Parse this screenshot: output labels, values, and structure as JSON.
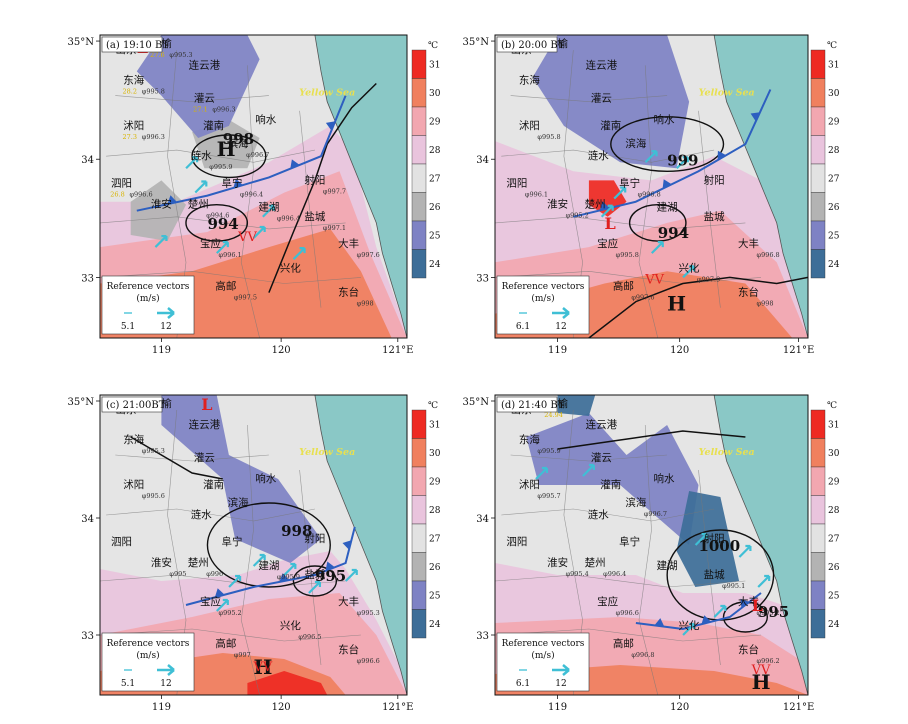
{
  "figure": {
    "map_extent": {
      "lon": [
        118.5,
        121.0
      ],
      "lat": [
        32.75,
        35.0
      ]
    },
    "colorbar": {
      "unit": "℃",
      "ticks": [
        "31",
        "30",
        "29",
        "28",
        "27",
        "26",
        "25",
        "24"
      ],
      "colors": [
        "#ee2a22",
        "#f0805e",
        "#f2a7b0",
        "#e9c4dd",
        "#e2e2e2",
        "#b3b3b3",
        "#7e82c4",
        "#3d6e98"
      ]
    },
    "colors": {
      "sea": "#8ac8c6",
      "land_base": "#e5e5e5",
      "front": "#2d5fc0",
      "trough": "#111111",
      "high_low": "#e02020"
    },
    "lon_ticks": [
      "119",
      "120",
      "121°E"
    ],
    "lat_ticks": [
      "35°N",
      "34",
      "33"
    ],
    "sea_label": "Yellow Sea",
    "legend": {
      "title": "Reference  vectors",
      "unit": "(m/s)"
    }
  },
  "panels": [
    {
      "id": "a",
      "title": "(a) 19:10 BT",
      "pressure_labels": [
        "998",
        "994"
      ],
      "legend_values": [
        "5.1",
        "12"
      ],
      "cities": [
        {
          "name": "赣榆",
          "temp": "27.6",
          "pres": "995.3"
        },
        {
          "name": "连云港",
          "temp": "",
          "pres": ""
        },
        {
          "name": "东海",
          "temp": "28.2",
          "pres": "995.8"
        },
        {
          "name": "灌云",
          "temp": "27.1",
          "pres": "996.3"
        },
        {
          "name": "沭阳",
          "temp": "27.3",
          "pres": "996.3"
        },
        {
          "name": "灌南",
          "temp": "",
          "pres": ""
        },
        {
          "name": "响水",
          "temp": "",
          "pres": ""
        },
        {
          "name": "涟水",
          "temp": "",
          "pres": "995.9"
        },
        {
          "name": "滨海",
          "temp": "",
          "pres": "996.7"
        },
        {
          "name": "阜宁",
          "temp": "",
          "pres": "996.4"
        },
        {
          "name": "泗阳",
          "temp": "26.8",
          "pres": "996.6"
        },
        {
          "name": "射阳",
          "temp": "",
          "pres": "997.7"
        },
        {
          "name": "淮安",
          "temp": "",
          "pres": ""
        },
        {
          "name": "楚州",
          "temp": "",
          "pres": "994.6"
        },
        {
          "name": "建湖",
          "temp": "",
          "pres": "996.4"
        },
        {
          "name": "盐城",
          "temp": "",
          "pres": "997.1"
        },
        {
          "name": "宝应",
          "temp": "",
          "pres": "996.1"
        },
        {
          "name": "大丰",
          "temp": "",
          "pres": "997.6"
        },
        {
          "name": "兴化",
          "temp": "",
          "pres": ""
        },
        {
          "name": "高邮",
          "temp": "",
          "pres": "997.5"
        },
        {
          "name": "东台",
          "temp": "",
          "pres": "998"
        }
      ]
    },
    {
      "id": "b",
      "title": "(b) 20:00 BT",
      "pressure_labels": [
        "999",
        "994"
      ],
      "legend_values": [
        "6.1",
        "12"
      ],
      "cities": [
        {
          "name": "赣榆",
          "temp": "",
          "pres": ""
        },
        {
          "name": "连云港",
          "temp": "",
          "pres": ""
        },
        {
          "name": "东海",
          "temp": "",
          "pres": ""
        },
        {
          "name": "灌云",
          "temp": "",
          "pres": ""
        },
        {
          "name": "沭阳",
          "temp": "",
          "pres": "995.8"
        },
        {
          "name": "灌南",
          "temp": "",
          "pres": ""
        },
        {
          "name": "响水",
          "temp": "",
          "pres": ""
        },
        {
          "name": "涟水",
          "temp": "",
          "pres": ""
        },
        {
          "name": "滨海",
          "temp": "",
          "pres": ""
        },
        {
          "name": "阜宁",
          "temp": "",
          "pres": "996.8"
        },
        {
          "name": "泗阳",
          "temp": "",
          "pres": "996.1"
        },
        {
          "name": "射阳",
          "temp": "",
          "pres": ""
        },
        {
          "name": "淮安",
          "temp": "",
          "pres": "995.2"
        },
        {
          "name": "楚州",
          "temp": "",
          "pres": ""
        },
        {
          "name": "建湖",
          "temp": "",
          "pres": ""
        },
        {
          "name": "盐城",
          "temp": "",
          "pres": ""
        },
        {
          "name": "宝应",
          "temp": "",
          "pres": "995.8"
        },
        {
          "name": "大丰",
          "temp": "",
          "pres": "996.8"
        },
        {
          "name": "兴化",
          "temp": "",
          "pres": "997.9"
        },
        {
          "name": "高邮",
          "temp": "",
          "pres": "997.6"
        },
        {
          "name": "东台",
          "temp": "",
          "pres": "998"
        }
      ]
    },
    {
      "id": "c",
      "title": "(c) 21:00BT",
      "pressure_labels": [
        "998",
        "995"
      ],
      "legend_values": [
        "5.1",
        "12"
      ],
      "cities": [
        {
          "name": "赣榆",
          "temp": "",
          "pres": ""
        },
        {
          "name": "连云港",
          "temp": "",
          "pres": ""
        },
        {
          "name": "东海",
          "temp": "",
          "pres": "995.3"
        },
        {
          "name": "灌云",
          "temp": "",
          "pres": ""
        },
        {
          "name": "沭阳",
          "temp": "",
          "pres": "995.6"
        },
        {
          "name": "灌南",
          "temp": "",
          "pres": ""
        },
        {
          "name": "响水",
          "temp": "",
          "pres": ""
        },
        {
          "name": "涟水",
          "temp": "",
          "pres": ""
        },
        {
          "name": "滨海",
          "temp": "",
          "pres": ""
        },
        {
          "name": "阜宁",
          "temp": "",
          "pres": ""
        },
        {
          "name": "泗阳",
          "temp": "",
          "pres": ""
        },
        {
          "name": "射阳",
          "temp": "",
          "pres": ""
        },
        {
          "name": "淮安",
          "temp": "",
          "pres": "995"
        },
        {
          "name": "楚州",
          "temp": "",
          "pres": "996"
        },
        {
          "name": "建湖",
          "temp": "",
          "pres": "995.9"
        },
        {
          "name": "盐城",
          "temp": "",
          "pres": ""
        },
        {
          "name": "宝应",
          "temp": "",
          "pres": "995.2"
        },
        {
          "name": "大丰",
          "temp": "",
          "pres": "995.3"
        },
        {
          "name": "兴化",
          "temp": "",
          "pres": "996.5"
        },
        {
          "name": "高邮",
          "temp": "",
          "pres": "997"
        },
        {
          "name": "东台",
          "temp": "",
          "pres": "996.6"
        }
      ]
    },
    {
      "id": "d",
      "title": "(d) 21:40 BT",
      "pressure_labels": [
        "1000",
        "995"
      ],
      "legend_values": [
        "6.1",
        "12"
      ],
      "cities": [
        {
          "name": "赣榆",
          "temp": "24.94",
          "pres": ""
        },
        {
          "name": "连云港",
          "temp": "",
          "pres": ""
        },
        {
          "name": "东海",
          "temp": "",
          "pres": "995.9"
        },
        {
          "name": "灌云",
          "temp": "",
          "pres": ""
        },
        {
          "name": "沭阳",
          "temp": "",
          "pres": "995.7"
        },
        {
          "name": "灌南",
          "temp": "",
          "pres": ""
        },
        {
          "name": "响水",
          "temp": "",
          "pres": ""
        },
        {
          "name": "涟水",
          "temp": "",
          "pres": ""
        },
        {
          "name": "滨海",
          "temp": "",
          "pres": "996.7"
        },
        {
          "name": "阜宁",
          "temp": "",
          "pres": ""
        },
        {
          "name": "泗阳",
          "temp": "",
          "pres": ""
        },
        {
          "name": "射阳",
          "temp": "",
          "pres": ""
        },
        {
          "name": "淮安",
          "temp": "",
          "pres": "995.4"
        },
        {
          "name": "楚州",
          "temp": "",
          "pres": "996.4"
        },
        {
          "name": "建湖",
          "temp": "",
          "pres": ""
        },
        {
          "name": "盐城",
          "temp": "",
          "pres": "995.1"
        },
        {
          "name": "宝应",
          "temp": "",
          "pres": "996.6"
        },
        {
          "name": "大丰",
          "temp": "",
          "pres": "995.2"
        },
        {
          "name": "兴化",
          "temp": "",
          "pres": ""
        },
        {
          "name": "高邮",
          "temp": "",
          "pres": "996.8"
        },
        {
          "name": "东台",
          "temp": "",
          "pres": "996.2"
        }
      ]
    }
  ]
}
